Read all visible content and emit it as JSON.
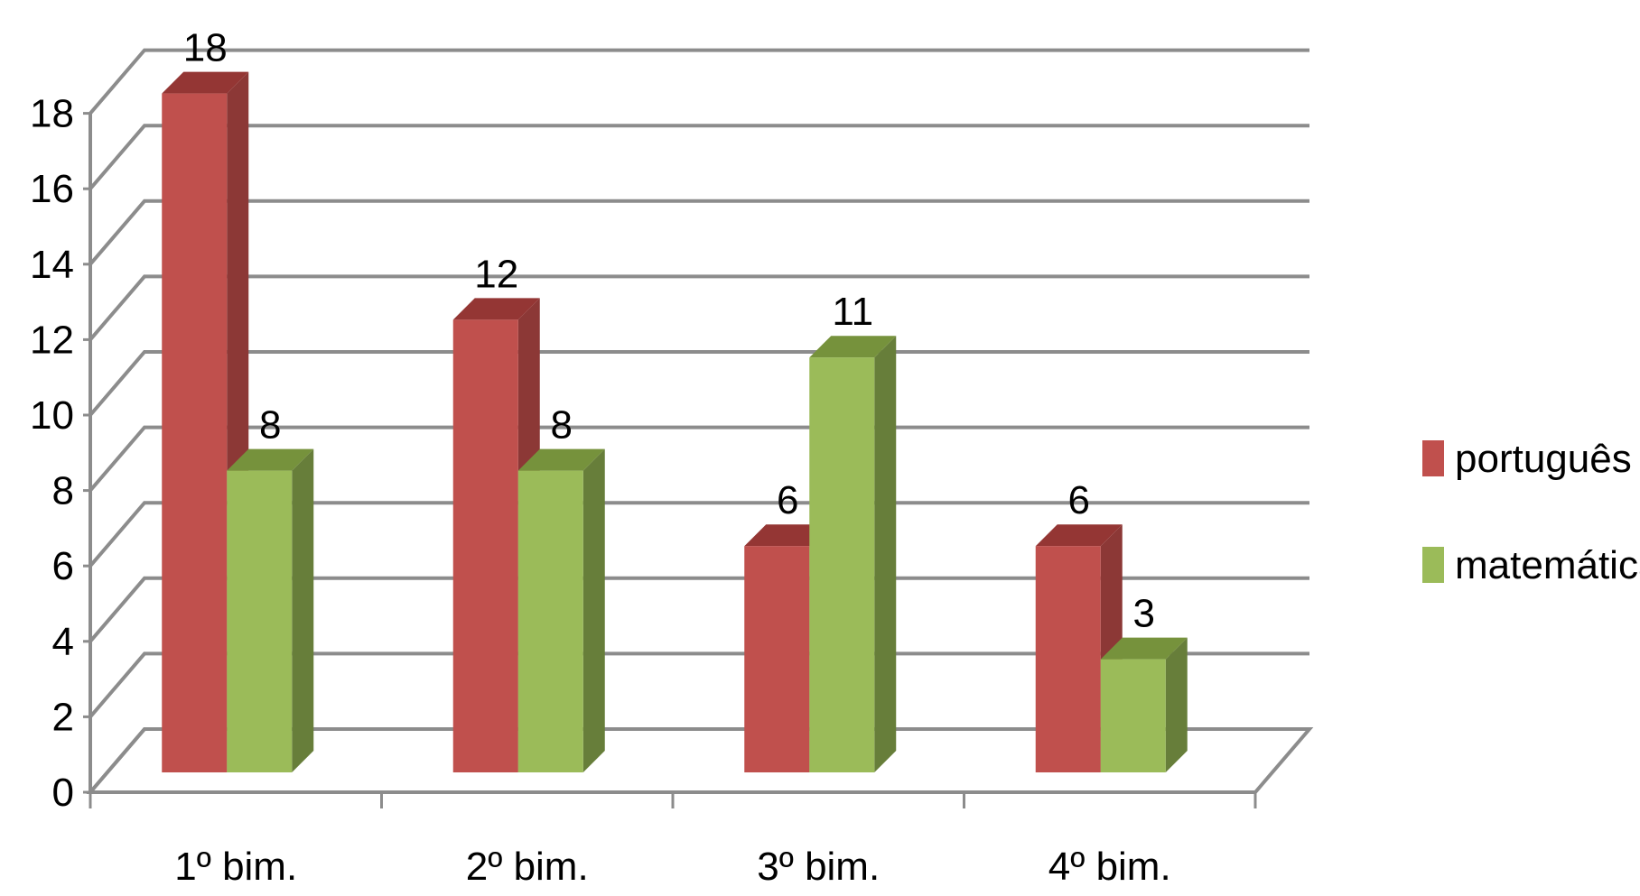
{
  "chart_data": {
    "type": "bar",
    "three_d": true,
    "categories": [
      "1º bim.",
      "2º bim.",
      "3º bim.",
      "4º bim."
    ],
    "series": [
      {
        "name": "português",
        "values": [
          18,
          12,
          6,
          6
        ]
      },
      {
        "name": "matemática",
        "values": [
          8,
          8,
          11,
          3
        ]
      }
    ],
    "y_ticks": [
      "0",
      "2",
      "4",
      "6",
      "8",
      "10",
      "12",
      "14",
      "16",
      "18"
    ],
    "ylim": [
      0,
      18
    ],
    "grid": true,
    "legend_position": "right",
    "data_labels": true,
    "colors": {
      "português": {
        "front": "#C0504D",
        "side": "#8C3836",
        "top": "#943634"
      },
      "matemática": {
        "front": "#9BBB59",
        "side": "#677E3A",
        "top": "#76923C"
      },
      "grid": "#8C8C8C",
      "floor": "#8C8C8C"
    }
  }
}
